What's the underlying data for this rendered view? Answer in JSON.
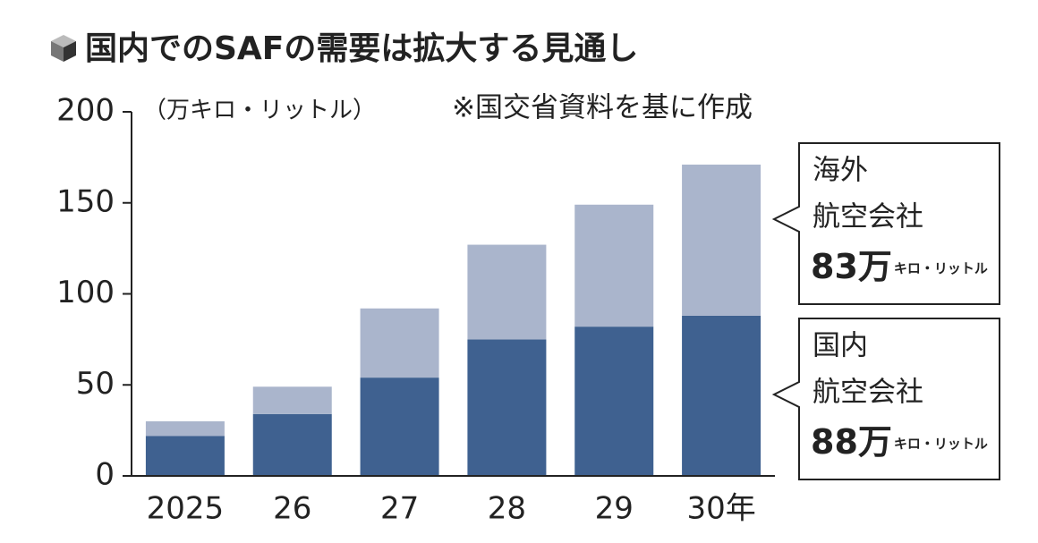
{
  "chart_data": {
    "type": "stacked_bar",
    "title": "国内でのSAFの需要は拡大する見通し",
    "y_label": "（万キロ・リットル）",
    "note": "※国交省資料を基に作成",
    "categories": [
      "2025",
      "26",
      "27",
      "28",
      "29",
      "30年"
    ],
    "series": [
      {
        "color": "#3f6190",
        "values": [
          22,
          34,
          54,
          75,
          82,
          88
        ]
      },
      {
        "color": "#aab5cc",
        "values": [
          8,
          15,
          38,
          52,
          67,
          83
        ]
      }
    ],
    "ylim": [
      0,
      200
    ],
    "yticks": [
      0,
      50,
      100,
      150,
      200
    ],
    "annotations": [
      {
        "lines": [
          "海外",
          "航空会社"
        ],
        "amount": "83万",
        "unit": "キロ・リットル"
      },
      {
        "lines": [
          "国内",
          "航空会社"
        ],
        "amount": "88万",
        "unit": "キロ・リットル"
      }
    ]
  }
}
